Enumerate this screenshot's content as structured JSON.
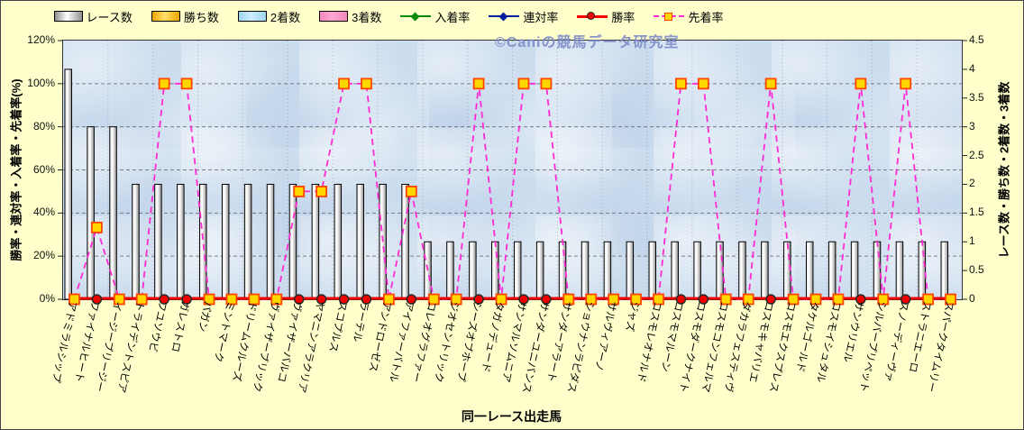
{
  "watermark": "©Caniの競馬データ研究室",
  "colors": {
    "background": "#ffffcc",
    "plot_background": "#cbdcee",
    "race_bar_fill": "#ffffff",
    "race_bar_shade": "#8f8f8f",
    "win_rate_line": "#f00000",
    "senchaku_line": "#ff2ad4",
    "senchaku_marker_fill": "#ffd700",
    "senchaku_marker_border": "#ff4500",
    "win_marker_border": "#2a2a2a"
  },
  "legend": {
    "items": [
      {
        "label": "レース数",
        "key": "bar",
        "c1": "#ffffff",
        "c2": "#8f8f8f"
      },
      {
        "label": "勝ち数",
        "key": "bar",
        "c1": "#ffdf6b",
        "c2": "#eda300"
      },
      {
        "label": "2着数",
        "key": "bar",
        "c1": "#cdeeff",
        "c2": "#9fd4ef"
      },
      {
        "label": "3着数",
        "key": "bar",
        "c1": "#ffa8d2",
        "c2": "#f287bd"
      },
      {
        "label": "入着率",
        "key": "line-diamond",
        "c1": "#0a8a0a"
      },
      {
        "label": "連対率",
        "key": "line-diamond",
        "c1": "#001f9e"
      },
      {
        "label": "勝率",
        "key": "line-circle",
        "c1": "#f00000"
      },
      {
        "label": "先着率",
        "key": "dash-square",
        "c1": "#ff2ad4"
      }
    ]
  },
  "chart_data": {
    "type": "combo-bar-line",
    "x_title": "同一レース出走馬",
    "left_axis": {
      "label": "勝率・連対率・入着率・先着率(%)",
      "min": 0,
      "max": 120,
      "step": 20,
      "tick_labels": [
        "0%",
        "20%",
        "40%",
        "60%",
        "80%",
        "100%",
        "120%"
      ]
    },
    "right_axis": {
      "label": "レース数・勝ち数・2着数・3着数",
      "min": 0,
      "max": 4.5,
      "step": 0.5,
      "tick_labels": [
        "0",
        "0.5",
        "1",
        "1.5",
        "2",
        "2.5",
        "3",
        "3.5",
        "4",
        "4.5"
      ]
    },
    "grid": {
      "horizontal": true,
      "vertical": true
    },
    "categories": [
      "アドミラルシップ",
      "ファイナルヒート",
      "イージーブリージー",
      "トライデントスピア",
      "フユソウビ",
      "ガレストロ",
      "パガン",
      "ミントマーク",
      "ドリームクルーズ",
      "ヴァイザーブリック",
      "ヴァイザーバルコ",
      "ヤマニンアラクリア",
      "スコプルス",
      "ラーテル",
      "アンドローゼス",
      "アイファーバトル",
      "コレオグラファー",
      "ジオセントリック",
      "シーズオブホープ",
      "タガノデュード",
      "サンマルソムニア",
      "サンダーユニバンス",
      "サンダーアラート",
      "ショウナンラピダス",
      "サルヴィアーノ",
      "ジャズ",
      "コスモレオナルド",
      "コスモマルーン",
      "コスモダークナイト",
      "コスモコンフェルマ",
      "ダカラフェスティヴ",
      "コスモキャバリエ",
      "コスモエクスプレス",
      "タケルゴールド",
      "コスモイシュタル",
      "サンウリエル",
      "シルバープリペット",
      "スノーディーヴァ",
      "ストラニエーロ",
      "スパークタイムリー"
    ],
    "series": [
      {
        "name": "レース数",
        "type": "bar",
        "axis": "right",
        "values": [
          4,
          3,
          3,
          2,
          2,
          2,
          2,
          2,
          2,
          2,
          2,
          2,
          2,
          2,
          2,
          2,
          1,
          1,
          1,
          1,
          1,
          1,
          1,
          1,
          1,
          1,
          1,
          1,
          1,
          1,
          1,
          1,
          1,
          1,
          1,
          1,
          1,
          1,
          1,
          1
        ]
      },
      {
        "name": "勝ち数",
        "type": "bar",
        "axis": "right",
        "values": [
          0,
          0,
          0,
          0,
          0,
          0,
          0,
          0,
          0,
          0,
          0,
          0,
          0,
          0,
          0,
          0,
          0,
          0,
          0,
          0,
          0,
          0,
          0,
          0,
          0,
          0,
          0,
          0,
          0,
          0,
          0,
          0,
          0,
          0,
          0,
          0,
          0,
          0,
          0,
          0
        ]
      },
      {
        "name": "2着数",
        "type": "bar",
        "axis": "right",
        "values": [
          0,
          0,
          0,
          0,
          0,
          0,
          0,
          0,
          0,
          0,
          0,
          0,
          0,
          0,
          0,
          0,
          0,
          0,
          0,
          0,
          0,
          0,
          0,
          0,
          0,
          0,
          0,
          0,
          0,
          0,
          0,
          0,
          0,
          0,
          0,
          0,
          0,
          0,
          0,
          0
        ]
      },
      {
        "name": "3着数",
        "type": "bar",
        "axis": "right",
        "values": [
          0,
          0,
          0,
          0,
          0,
          0,
          0,
          0,
          0,
          0,
          0,
          0,
          0,
          0,
          0,
          0,
          0,
          0,
          0,
          0,
          0,
          0,
          0,
          0,
          0,
          0,
          0,
          0,
          0,
          0,
          0,
          0,
          0,
          0,
          0,
          0,
          0,
          0,
          0,
          0
        ]
      },
      {
        "name": "入着率",
        "type": "line",
        "axis": "left",
        "color": "#0a8a0a",
        "values": [
          0,
          0,
          0,
          0,
          0,
          0,
          0,
          0,
          0,
          0,
          0,
          0,
          0,
          0,
          0,
          0,
          0,
          0,
          0,
          0,
          0,
          0,
          0,
          0,
          0,
          0,
          0,
          0,
          0,
          0,
          0,
          0,
          0,
          0,
          0,
          0,
          0,
          0,
          0,
          0
        ]
      },
      {
        "name": "連対率",
        "type": "line",
        "axis": "left",
        "color": "#001f9e",
        "values": [
          0,
          0,
          0,
          0,
          0,
          0,
          0,
          0,
          0,
          0,
          0,
          0,
          0,
          0,
          0,
          0,
          0,
          0,
          0,
          0,
          0,
          0,
          0,
          0,
          0,
          0,
          0,
          0,
          0,
          0,
          0,
          0,
          0,
          0,
          0,
          0,
          0,
          0,
          0,
          0
        ]
      },
      {
        "name": "勝率",
        "type": "line",
        "axis": "left",
        "color": "#f00000",
        "marker": "circle",
        "marker_fill": "#f00000",
        "marker_border": "#2a2a2a",
        "values": [
          0,
          0,
          0,
          0,
          0,
          0,
          0,
          0,
          0,
          0,
          0,
          0,
          0,
          0,
          0,
          0,
          0,
          0,
          0,
          0,
          0,
          0,
          0,
          0,
          0,
          0,
          0,
          0,
          0,
          0,
          0,
          0,
          0,
          0,
          0,
          0,
          0,
          0,
          0,
          0
        ]
      },
      {
        "name": "先着率",
        "type": "line",
        "axis": "left",
        "color": "#ff2ad4",
        "dashed": true,
        "marker": "square",
        "marker_fill": "#ffd700",
        "marker_border": "#ff4500",
        "values": [
          0,
          33.3,
          0,
          0,
          100,
          100,
          0,
          0,
          0,
          0,
          50,
          50,
          100,
          100,
          0,
          50,
          0,
          0,
          100,
          0,
          100,
          100,
          0,
          0,
          0,
          0,
          0,
          100,
          100,
          0,
          0,
          100,
          0,
          0,
          0,
          100,
          0,
          100,
          0,
          0
        ]
      }
    ]
  }
}
